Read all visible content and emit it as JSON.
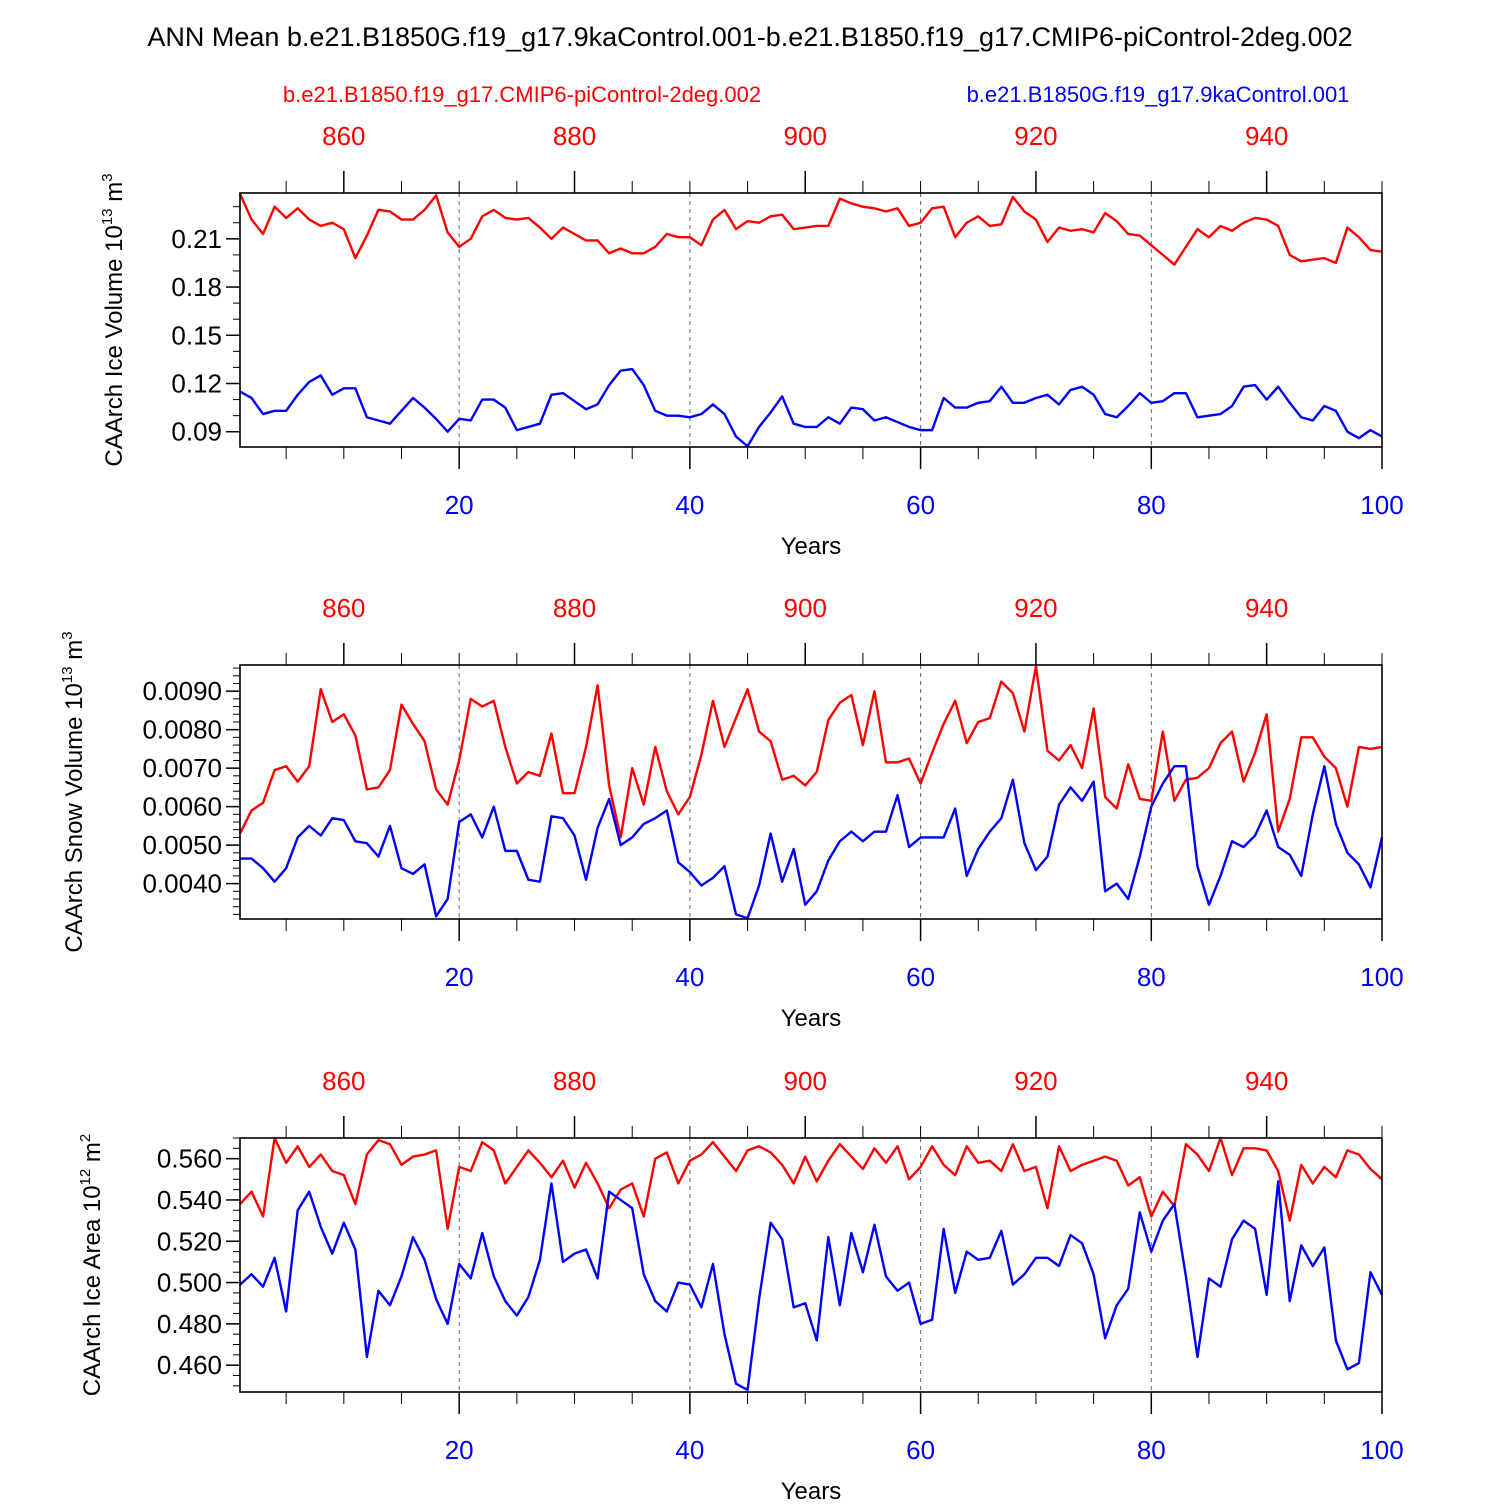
{
  "title": "ANN Mean b.e21.B1850G.f19_g17.9kaControl.001-b.e21.B1850.f19_g17.CMIP6-piControl-2deg.002",
  "legend": {
    "red_label": "b.e21.B1850.f19_g17.CMIP6-piControl-2deg.002",
    "blue_label": "b.e21.B1850G.f19_g17.9kaControl.001"
  },
  "colors": {
    "red": "#ff0000",
    "blue": "#0000ff",
    "axis": "#000000",
    "grid": "#666666"
  },
  "chart_data": [
    {
      "type": "line",
      "ylabel": "CAArch Ice Volume 10",
      "ylabel_sup": "13",
      "ylabel_unit": " m",
      "ylabel_unit_sup": "3",
      "xlabel": "Years",
      "xlim": [
        1,
        100
      ],
      "ylim": [
        0.0805,
        0.2385
      ],
      "yticks": [
        0.09,
        0.12,
        0.15,
        0.18,
        0.21
      ],
      "ytick_labels": [
        "0.09",
        "0.12",
        "0.15",
        "0.18",
        "0.21"
      ],
      "yminor_step": 0.01,
      "xticks_bottom": [
        20,
        40,
        60,
        80,
        100
      ],
      "xtick_labels_bottom": [
        "20",
        "40",
        "60",
        "80",
        "100"
      ],
      "xticks_top": [
        860,
        880,
        900,
        920,
        940
      ],
      "xtick_labels_top": [
        "860",
        "880",
        "900",
        "920",
        "940"
      ],
      "top_axis_offset": 850,
      "series": [
        {
          "name": "b.e21.B1850.f19_g17.CMIP6-piControl-2deg.002",
          "color": "red",
          "values": [
            0.238,
            0.222,
            0.213,
            0.23,
            0.223,
            0.229,
            0.222,
            0.218,
            0.22,
            0.216,
            0.198,
            0.212,
            0.228,
            0.227,
            0.222,
            0.222,
            0.228,
            0.237,
            0.214,
            0.205,
            0.21,
            0.224,
            0.228,
            0.223,
            0.222,
            0.223,
            0.217,
            0.21,
            0.217,
            0.213,
            0.209,
            0.209,
            0.201,
            0.204,
            0.201,
            0.201,
            0.205,
            0.213,
            0.211,
            0.211,
            0.206,
            0.222,
            0.228,
            0.216,
            0.221,
            0.22,
            0.224,
            0.225,
            0.216,
            0.217,
            0.218,
            0.218,
            0.235,
            0.232,
            0.23,
            0.229,
            0.227,
            0.229,
            0.218,
            0.22,
            0.229,
            0.23,
            0.211,
            0.22,
            0.224,
            0.218,
            0.219,
            0.236,
            0.227,
            0.222,
            0.208,
            0.217,
            0.215,
            0.216,
            0.214,
            0.226,
            0.221,
            0.213,
            0.212,
            0.206,
            0.2,
            0.194,
            0.205,
            0.216,
            0.211,
            0.218,
            0.215,
            0.22,
            0.223,
            0.222,
            0.218,
            0.2,
            0.196,
            0.197,
            0.198,
            0.195,
            0.217,
            0.211,
            0.203,
            0.202
          ]
        },
        {
          "name": "b.e21.B1850G.f19_g17.9kaControl.001",
          "color": "blue",
          "values": [
            0.115,
            0.111,
            0.101,
            0.103,
            0.103,
            0.113,
            0.121,
            0.125,
            0.113,
            0.117,
            0.117,
            0.099,
            0.097,
            0.095,
            0.103,
            0.111,
            0.105,
            0.098,
            0.09,
            0.098,
            0.097,
            0.11,
            0.11,
            0.105,
            0.091,
            0.093,
            0.095,
            0.113,
            0.114,
            0.109,
            0.104,
            0.107,
            0.119,
            0.128,
            0.129,
            0.119,
            0.103,
            0.1,
            0.1,
            0.099,
            0.101,
            0.107,
            0.101,
            0.087,
            0.081,
            0.093,
            0.102,
            0.112,
            0.095,
            0.093,
            0.093,
            0.099,
            0.095,
            0.105,
            0.104,
            0.097,
            0.099,
            0.096,
            0.093,
            0.091,
            0.091,
            0.111,
            0.105,
            0.105,
            0.108,
            0.109,
            0.118,
            0.108,
            0.108,
            0.111,
            0.113,
            0.107,
            0.116,
            0.118,
            0.113,
            0.101,
            0.099,
            0.106,
            0.114,
            0.108,
            0.109,
            0.114,
            0.114,
            0.099,
            0.1,
            0.101,
            0.106,
            0.118,
            0.119,
            0.11,
            0.118,
            0.108,
            0.099,
            0.097,
            0.106,
            0.103,
            0.09,
            0.086,
            0.091,
            0.087
          ]
        }
      ]
    },
    {
      "type": "line",
      "ylabel": "CAArch Snow Volume 10",
      "ylabel_sup": "13",
      "ylabel_unit": " m",
      "ylabel_unit_sup": "3",
      "xlabel": "Years",
      "xlim": [
        1,
        100
      ],
      "ylim": [
        0.00308,
        0.00968
      ],
      "yticks": [
        0.004,
        0.005,
        0.006,
        0.007,
        0.008,
        0.009
      ],
      "ytick_labels": [
        "0.0040",
        "0.0050",
        "0.0060",
        "0.0070",
        "0.0080",
        "0.0090"
      ],
      "yminor_step": 0.0002,
      "xticks_bottom": [
        20,
        40,
        60,
        80,
        100
      ],
      "xtick_labels_bottom": [
        "20",
        "40",
        "60",
        "80",
        "100"
      ],
      "xticks_top": [
        860,
        880,
        900,
        920,
        940
      ],
      "xtick_labels_top": [
        "860",
        "880",
        "900",
        "920",
        "940"
      ],
      "top_axis_offset": 850,
      "series": [
        {
          "name": "b.e21.B1850.f19_g17.CMIP6-piControl-2deg.002",
          "color": "red",
          "values": [
            0.0053,
            0.0059,
            0.0061,
            0.00695,
            0.00705,
            0.00665,
            0.00705,
            0.00905,
            0.0082,
            0.0084,
            0.00785,
            0.00645,
            0.0065,
            0.00695,
            0.00865,
            0.00815,
            0.0077,
            0.00645,
            0.00605,
            0.0072,
            0.0088,
            0.0086,
            0.00875,
            0.00755,
            0.0066,
            0.0069,
            0.0068,
            0.0079,
            0.00635,
            0.00635,
            0.00755,
            0.00915,
            0.00655,
            0.0052,
            0.007,
            0.00605,
            0.00755,
            0.0064,
            0.0058,
            0.00625,
            0.00735,
            0.00875,
            0.00755,
            0.0083,
            0.00905,
            0.00795,
            0.0077,
            0.0067,
            0.0068,
            0.00655,
            0.0069,
            0.00825,
            0.0087,
            0.0089,
            0.0076,
            0.009,
            0.00715,
            0.00715,
            0.00725,
            0.0066,
            0.0074,
            0.00815,
            0.00875,
            0.00765,
            0.0082,
            0.0083,
            0.00925,
            0.00895,
            0.00795,
            0.00965,
            0.00745,
            0.0072,
            0.0076,
            0.007,
            0.00855,
            0.00625,
            0.00595,
            0.0071,
            0.0062,
            0.00615,
            0.00795,
            0.00615,
            0.0067,
            0.00675,
            0.007,
            0.00765,
            0.00795,
            0.00665,
            0.0074,
            0.0084,
            0.00535,
            0.0062,
            0.0078,
            0.0078,
            0.0073,
            0.007,
            0.006,
            0.00755,
            0.0075,
            0.00755
          ]
        },
        {
          "name": "b.e21.B1850G.f19_g17.9kaControl.001",
          "color": "blue",
          "values": [
            0.00465,
            0.00465,
            0.0044,
            0.00405,
            0.0044,
            0.0052,
            0.0055,
            0.00525,
            0.0057,
            0.00565,
            0.0051,
            0.00505,
            0.0047,
            0.0055,
            0.0044,
            0.00425,
            0.0045,
            0.00315,
            0.0036,
            0.0056,
            0.0058,
            0.0052,
            0.006,
            0.00485,
            0.00485,
            0.0041,
            0.00405,
            0.00575,
            0.0057,
            0.00525,
            0.0041,
            0.00545,
            0.0062,
            0.005,
            0.0052,
            0.00555,
            0.0057,
            0.0059,
            0.00455,
            0.0043,
            0.00395,
            0.00415,
            0.00445,
            0.0032,
            0.0031,
            0.00395,
            0.0053,
            0.00405,
            0.0049,
            0.00345,
            0.0038,
            0.0046,
            0.0051,
            0.00535,
            0.0051,
            0.00535,
            0.00535,
            0.0063,
            0.00495,
            0.0052,
            0.0052,
            0.0052,
            0.00595,
            0.0042,
            0.0049,
            0.00535,
            0.0057,
            0.0067,
            0.00505,
            0.00435,
            0.0047,
            0.00605,
            0.0065,
            0.00615,
            0.00665,
            0.0038,
            0.004,
            0.0036,
            0.0047,
            0.006,
            0.0066,
            0.00705,
            0.00705,
            0.00445,
            0.00345,
            0.0042,
            0.0051,
            0.00495,
            0.00525,
            0.0059,
            0.00495,
            0.00475,
            0.0042,
            0.0058,
            0.00705,
            0.00555,
            0.0048,
            0.0045,
            0.0039,
            0.0052
          ]
        }
      ]
    },
    {
      "type": "line",
      "ylabel": "CAArch Ice Area 10",
      "ylabel_sup": "12",
      "ylabel_unit": " m",
      "ylabel_unit_sup": "2",
      "xlabel": "Years",
      "xlim": [
        1,
        100
      ],
      "ylim": [
        0.447,
        0.57
      ],
      "yticks": [
        0.46,
        0.48,
        0.5,
        0.52,
        0.54,
        0.56
      ],
      "ytick_labels": [
        "0.460",
        "0.480",
        "0.500",
        "0.520",
        "0.540",
        "0.560"
      ],
      "yminor_step": 0.005,
      "xticks_bottom": [
        20,
        40,
        60,
        80,
        100
      ],
      "xtick_labels_bottom": [
        "20",
        "40",
        "60",
        "80",
        "100"
      ],
      "xticks_top": [
        860,
        880,
        900,
        920,
        940
      ],
      "xtick_labels_top": [
        "860",
        "880",
        "900",
        "920",
        "940"
      ],
      "top_axis_offset": 850,
      "series": [
        {
          "name": "b.e21.B1850.f19_g17.CMIP6-piControl-2deg.002",
          "color": "red",
          "values": [
            0.538,
            0.544,
            0.532,
            0.57,
            0.558,
            0.566,
            0.556,
            0.562,
            0.554,
            0.552,
            0.538,
            0.562,
            0.569,
            0.567,
            0.557,
            0.561,
            0.562,
            0.564,
            0.526,
            0.556,
            0.554,
            0.568,
            0.564,
            0.548,
            0.556,
            0.564,
            0.558,
            0.551,
            0.559,
            0.546,
            0.558,
            0.548,
            0.536,
            0.545,
            0.548,
            0.532,
            0.56,
            0.563,
            0.548,
            0.559,
            0.562,
            0.568,
            0.561,
            0.554,
            0.564,
            0.566,
            0.563,
            0.557,
            0.548,
            0.561,
            0.549,
            0.559,
            0.567,
            0.561,
            0.555,
            0.565,
            0.558,
            0.566,
            0.55,
            0.556,
            0.566,
            0.557,
            0.552,
            0.566,
            0.558,
            0.559,
            0.554,
            0.567,
            0.554,
            0.556,
            0.536,
            0.566,
            0.554,
            0.557,
            0.559,
            0.561,
            0.559,
            0.547,
            0.551,
            0.532,
            0.544,
            0.537,
            0.567,
            0.562,
            0.554,
            0.57,
            0.552,
            0.565,
            0.565,
            0.564,
            0.554,
            0.53,
            0.557,
            0.548,
            0.556,
            0.551,
            0.564,
            0.562,
            0.555,
            0.55
          ]
        },
        {
          "name": "b.e21.B1850G.f19_g17.9kaControl.001",
          "color": "blue",
          "values": [
            0.499,
            0.504,
            0.498,
            0.512,
            0.486,
            0.535,
            0.544,
            0.527,
            0.514,
            0.529,
            0.516,
            0.464,
            0.496,
            0.489,
            0.503,
            0.522,
            0.511,
            0.492,
            0.48,
            0.509,
            0.502,
            0.524,
            0.503,
            0.491,
            0.484,
            0.493,
            0.511,
            0.548,
            0.51,
            0.514,
            0.516,
            0.502,
            0.544,
            0.54,
            0.536,
            0.504,
            0.491,
            0.486,
            0.5,
            0.499,
            0.488,
            0.509,
            0.475,
            0.451,
            0.448,
            0.492,
            0.529,
            0.521,
            0.488,
            0.49,
            0.472,
            0.522,
            0.489,
            0.524,
            0.505,
            0.528,
            0.503,
            0.496,
            0.5,
            0.48,
            0.482,
            0.526,
            0.495,
            0.515,
            0.511,
            0.512,
            0.525,
            0.499,
            0.504,
            0.512,
            0.512,
            0.508,
            0.523,
            0.519,
            0.504,
            0.473,
            0.489,
            0.497,
            0.534,
            0.515,
            0.53,
            0.538,
            0.503,
            0.464,
            0.502,
            0.498,
            0.521,
            0.53,
            0.526,
            0.494,
            0.549,
            0.491,
            0.518,
            0.508,
            0.517,
            0.472,
            0.458,
            0.461,
            0.505,
            0.494
          ]
        }
      ]
    }
  ]
}
